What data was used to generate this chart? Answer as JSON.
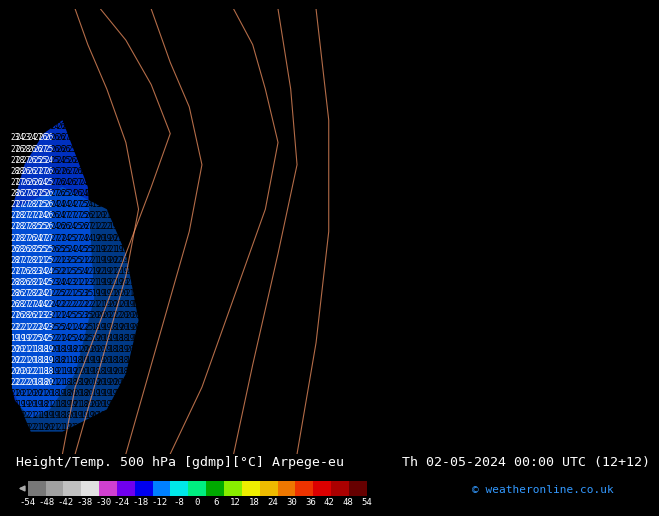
{
  "title_left": "Height/Temp. 500 hPa [gdmp][°C] Arpege-eu",
  "title_right": "Th 02-05-2024 00:00 UTC (12+12)",
  "copyright": "© weatheronline.co.uk",
  "colorbar_tick_labels": [
    "-54",
    "-48",
    "-42",
    "-38",
    "-30",
    "-24",
    "-18",
    "-12",
    "-8",
    "0",
    "6",
    "12",
    "18",
    "24",
    "30",
    "36",
    "42",
    "48",
    "54"
  ],
  "colorbar_colors": [
    "#787878",
    "#a0a0a0",
    "#c0c0c0",
    "#e0e0e0",
    "#d040d0",
    "#7000ee",
    "#0000ee",
    "#0080ff",
    "#00e8e8",
    "#00ee80",
    "#00aa00",
    "#88ee00",
    "#eeee00",
    "#eebb00",
    "#ee7700",
    "#ee3300",
    "#dd0000",
    "#aa0000",
    "#660000"
  ],
  "bg_color": "#000000",
  "map_bg_color": "#00d4ff",
  "dark_blue_color": "#0030c0",
  "medium_blue_color": "#0060e0",
  "num_color_main": "#000000",
  "num_color_white": "#ffffff",
  "font_size_numbers": 5.5,
  "font_size_title": 9.5,
  "font_size_ticks": 6.5,
  "font_size_copyright": 8,
  "rows": 40,
  "cols": 110
}
